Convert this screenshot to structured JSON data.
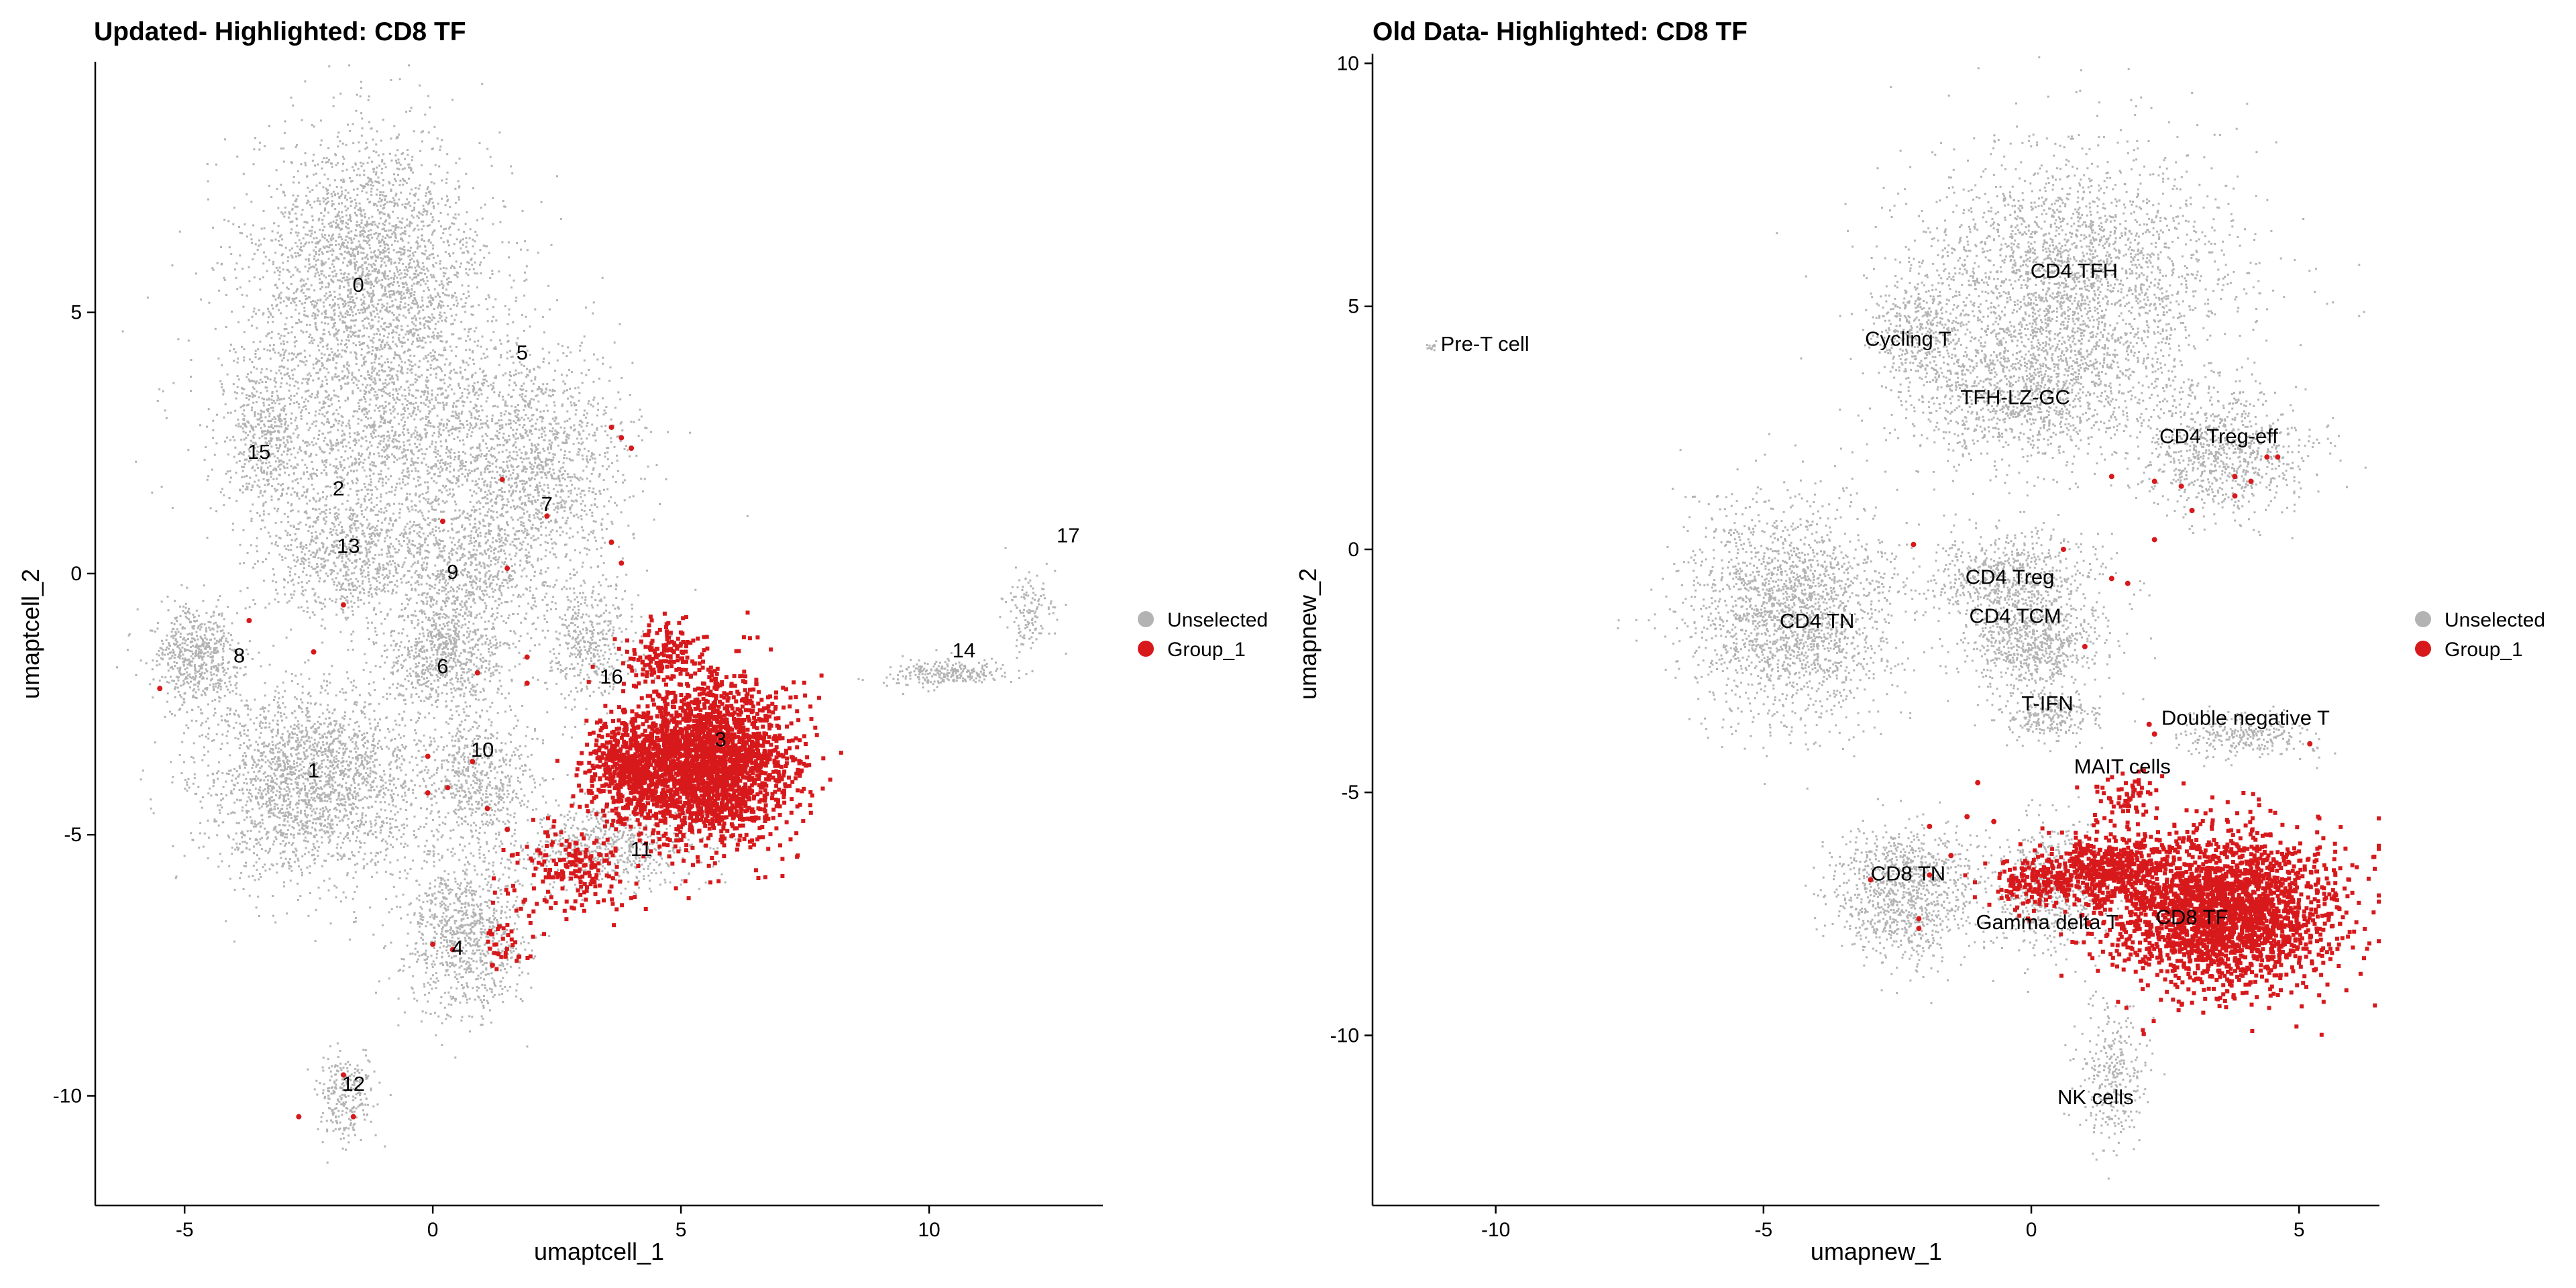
{
  "colors": {
    "unselected": "#b3b3b3",
    "group_1": "#d7191c",
    "axis": "#000000",
    "text": "#000000"
  },
  "chart_data": [
    {
      "type": "scatter",
      "title": "Updated- Highlighted: CD8 TF",
      "xlabel": "umaptcell_1",
      "ylabel": "umaptcell_2",
      "xlim": [
        -6.8,
        13.5
      ],
      "ylim": [
        -12.1,
        9.8
      ],
      "xticks": [
        {
          "value": -5,
          "label": "-5"
        },
        {
          "value": 0,
          "label": "0"
        },
        {
          "value": 5,
          "label": "5"
        },
        {
          "value": 10,
          "label": "10"
        }
      ],
      "yticks": [
        {
          "value": -10,
          "label": "-10"
        },
        {
          "value": -5,
          "label": "-5"
        },
        {
          "value": 0,
          "label": "0"
        },
        {
          "value": 5,
          "label": "5"
        }
      ],
      "legend_position": "right",
      "legend": [
        {
          "label": "Unselected",
          "color": "#b3b3b3"
        },
        {
          "label": "Group_1",
          "color": "#d7191c"
        }
      ],
      "cluster_labels": [
        {
          "text": "0",
          "x": -1.5,
          "y": 5.5
        },
        {
          "text": "5",
          "x": 1.8,
          "y": 4.2
        },
        {
          "text": "15",
          "x": -3.5,
          "y": 2.3
        },
        {
          "text": "2",
          "x": -1.9,
          "y": 1.6
        },
        {
          "text": "7",
          "x": 2.3,
          "y": 1.3
        },
        {
          "text": "13",
          "x": -1.7,
          "y": 0.5
        },
        {
          "text": "9",
          "x": 0.4,
          "y": 0.0
        },
        {
          "text": "8",
          "x": -3.9,
          "y": -1.6
        },
        {
          "text": "6",
          "x": 0.2,
          "y": -1.8
        },
        {
          "text": "16",
          "x": 3.6,
          "y": -2.0
        },
        {
          "text": "3",
          "x": 5.8,
          "y": -3.2
        },
        {
          "text": "10",
          "x": 1.0,
          "y": -3.4
        },
        {
          "text": "1",
          "x": -2.4,
          "y": -3.8
        },
        {
          "text": "11",
          "x": 4.2,
          "y": -5.3
        },
        {
          "text": "4",
          "x": 0.5,
          "y": -7.2
        },
        {
          "text": "12",
          "x": -1.6,
          "y": -9.8
        },
        {
          "text": "14",
          "x": 10.7,
          "y": -1.5
        },
        {
          "text": "17",
          "x": 12.8,
          "y": 0.7
        }
      ],
      "unselected_regions": [
        {
          "cx": -1.3,
          "cy": 5.8,
          "rx": 2.4,
          "ry": 2.6,
          "n": 2600
        },
        {
          "cx": -0.4,
          "cy": 2.6,
          "rx": 3.6,
          "ry": 2.2,
          "n": 2200
        },
        {
          "cx": 2.2,
          "cy": 1.8,
          "rx": 1.6,
          "ry": 2.2,
          "n": 900
        },
        {
          "cx": -3.4,
          "cy": 2.6,
          "rx": 0.8,
          "ry": 1.5,
          "n": 400
        },
        {
          "cx": -1.8,
          "cy": 0.3,
          "rx": 1.6,
          "ry": 1.1,
          "n": 700
        },
        {
          "cx": 0.6,
          "cy": 0.0,
          "rx": 1.5,
          "ry": 1.2,
          "n": 700
        },
        {
          "cx": -4.8,
          "cy": -1.6,
          "rx": 0.9,
          "ry": 1.0,
          "n": 600
        },
        {
          "cx": 0.2,
          "cy": -1.6,
          "rx": 1.3,
          "ry": 1.0,
          "n": 700
        },
        {
          "cx": 3.1,
          "cy": -1.3,
          "rx": 0.9,
          "ry": 1.2,
          "n": 400
        },
        {
          "cx": -2.4,
          "cy": -4.0,
          "rx": 2.3,
          "ry": 1.9,
          "n": 2300
        },
        {
          "cx": 0.9,
          "cy": -3.9,
          "rx": 1.2,
          "ry": 1.2,
          "n": 600
        },
        {
          "cx": 3.5,
          "cy": -5.2,
          "rx": 1.9,
          "ry": 0.8,
          "n": 600
        },
        {
          "cx": 0.6,
          "cy": -6.9,
          "rx": 1.2,
          "ry": 1.5,
          "n": 900
        },
        {
          "cx": -1.8,
          "cy": -10.0,
          "rx": 0.6,
          "ry": 0.9,
          "n": 250
        },
        {
          "cx": 10.3,
          "cy": -1.9,
          "rx": 1.2,
          "ry": 0.25,
          "n": 250
        },
        {
          "cx": 12.0,
          "cy": -0.7,
          "rx": 0.5,
          "ry": 0.8,
          "n": 130
        }
      ],
      "group_1_regions": [
        {
          "cx": 5.5,
          "cy": -3.6,
          "rx": 1.6,
          "ry": 1.5,
          "n": 2400
        },
        {
          "cx": 3.9,
          "cy": -3.7,
          "rx": 0.9,
          "ry": 1.0,
          "n": 500
        },
        {
          "cx": 4.6,
          "cy": -1.5,
          "rx": 0.8,
          "ry": 0.6,
          "n": 150
        },
        {
          "cx": 2.8,
          "cy": -5.6,
          "rx": 1.2,
          "ry": 0.8,
          "n": 180
        },
        {
          "cx": 1.6,
          "cy": -6.8,
          "rx": 0.6,
          "ry": 1.2,
          "n": 45
        }
      ],
      "group_1_sparse": [
        [
          -5.5,
          -2.2
        ],
        [
          -3.7,
          -0.9
        ],
        [
          -2.4,
          -1.5
        ],
        [
          -1.8,
          -0.6
        ],
        [
          0.2,
          1.0
        ],
        [
          1.4,
          1.8
        ],
        [
          1.5,
          0.1
        ],
        [
          2.3,
          1.1
        ],
        [
          3.6,
          0.6
        ],
        [
          3.6,
          2.8
        ],
        [
          3.8,
          2.6
        ],
        [
          4.0,
          2.4
        ],
        [
          3.8,
          0.2
        ],
        [
          0.9,
          -1.9
        ],
        [
          1.9,
          -1.6
        ],
        [
          1.9,
          -2.1
        ],
        [
          -0.1,
          -4.2
        ],
        [
          0.3,
          -4.1
        ],
        [
          0.8,
          -3.6
        ],
        [
          1.5,
          -4.9
        ],
        [
          0.0,
          -7.1
        ],
        [
          0.4,
          -7.2
        ],
        [
          1.2,
          -7.5
        ],
        [
          -1.8,
          -9.6
        ],
        [
          -1.6,
          -10.4
        ],
        [
          -2.7,
          -10.4
        ],
        [
          -0.1,
          -3.5
        ],
        [
          1.1,
          -4.5
        ]
      ]
    },
    {
      "type": "scatter",
      "title": "Old Data- Highlighted: CD8 TF",
      "xlabel": "umapnew_1",
      "ylabel": "umapnew_2",
      "xlim": [
        -12.3,
        6.5
      ],
      "ylim": [
        -13.5,
        10.2
      ],
      "xticks": [
        {
          "value": -10,
          "label": "-10"
        },
        {
          "value": -5,
          "label": "-5"
        },
        {
          "value": 0,
          "label": "0"
        },
        {
          "value": 5,
          "label": "5"
        }
      ],
      "yticks": [
        {
          "value": -10,
          "label": "-10"
        },
        {
          "value": -5,
          "label": "-5"
        },
        {
          "value": 0,
          "label": "0"
        },
        {
          "value": 5,
          "label": "5"
        },
        {
          "value": 10,
          "label": "10"
        }
      ],
      "legend_position": "right",
      "legend": [
        {
          "label": "Unselected",
          "color": "#b3b3b3"
        },
        {
          "label": "Group_1",
          "color": "#d7191c"
        }
      ],
      "cluster_labels": [
        {
          "text": "CD4 TFH",
          "x": 0.8,
          "y": 5.7
        },
        {
          "text": "Pre-T cell",
          "x": -10.2,
          "y": 4.2
        },
        {
          "text": "Cycling T",
          "x": -2.3,
          "y": 4.3
        },
        {
          "text": "TFH-LZ-GC",
          "x": -0.3,
          "y": 3.1
        },
        {
          "text": "CD4 Treg-eff",
          "x": 3.5,
          "y": 2.3
        },
        {
          "text": "CD4 Treg",
          "x": -0.4,
          "y": -0.6
        },
        {
          "text": "CD4 TN",
          "x": -4.0,
          "y": -1.5
        },
        {
          "text": "CD4 TCM",
          "x": -0.3,
          "y": -1.4
        },
        {
          "text": "T-IFN",
          "x": 0.3,
          "y": -3.2
        },
        {
          "text": "Double negative T",
          "x": 4.0,
          "y": -3.5
        },
        {
          "text": "MAIT cells",
          "x": 1.7,
          "y": -4.5
        },
        {
          "text": "CD8 TN",
          "x": -2.3,
          "y": -6.7
        },
        {
          "text": "Gamma delta T",
          "x": 0.3,
          "y": -7.7
        },
        {
          "text": "CD8 TF",
          "x": 3.0,
          "y": -7.6
        },
        {
          "text": "NK cells",
          "x": 1.2,
          "y": -11.3
        }
      ],
      "unselected_regions": [
        {
          "cx": 0.8,
          "cy": 5.5,
          "rx": 2.9,
          "ry": 2.6,
          "n": 2600
        },
        {
          "cx": -0.2,
          "cy": 3.2,
          "rx": 2.2,
          "ry": 1.4,
          "n": 1100
        },
        {
          "cx": -2.1,
          "cy": 4.5,
          "rx": 1.0,
          "ry": 1.0,
          "n": 350
        },
        {
          "cx": 3.6,
          "cy": 2.0,
          "rx": 1.5,
          "ry": 1.3,
          "n": 800
        },
        {
          "cx": -4.5,
          "cy": -1.3,
          "rx": 1.9,
          "ry": 2.2,
          "n": 2000
        },
        {
          "cx": -0.4,
          "cy": -0.6,
          "rx": 1.6,
          "ry": 1.0,
          "n": 700
        },
        {
          "cx": 0.0,
          "cy": -1.9,
          "rx": 1.3,
          "ry": 0.9,
          "n": 700
        },
        {
          "cx": 0.3,
          "cy": -3.4,
          "rx": 0.9,
          "ry": 0.5,
          "n": 250
        },
        {
          "cx": 4.0,
          "cy": -3.8,
          "rx": 1.3,
          "ry": 0.5,
          "n": 280
        },
        {
          "cx": -2.4,
          "cy": -7.0,
          "rx": 1.3,
          "ry": 1.4,
          "n": 1000
        },
        {
          "cx": 0.3,
          "cy": -7.0,
          "rx": 1.3,
          "ry": 1.3,
          "n": 600
        },
        {
          "cx": 1.5,
          "cy": -10.8,
          "rx": 0.6,
          "ry": 1.5,
          "n": 300
        },
        {
          "cx": -11.2,
          "cy": 4.2,
          "rx": 0.12,
          "ry": 0.08,
          "n": 15
        }
      ],
      "group_1_regions": [
        {
          "cx": 3.5,
          "cy": -7.4,
          "rx": 2.1,
          "ry": 1.5,
          "n": 2400
        },
        {
          "cx": 1.4,
          "cy": -6.5,
          "rx": 1.1,
          "ry": 0.7,
          "n": 450
        },
        {
          "cx": 0.0,
          "cy": -6.8,
          "rx": 0.9,
          "ry": 0.5,
          "n": 170
        },
        {
          "cx": 1.8,
          "cy": -5.0,
          "rx": 0.6,
          "ry": 0.5,
          "n": 60
        }
      ],
      "group_1_sparse": [
        [
          -2.2,
          0.1
        ],
        [
          0.6,
          0.0
        ],
        [
          1.5,
          -0.6
        ],
        [
          1.8,
          -0.7
        ],
        [
          2.3,
          0.2
        ],
        [
          1.5,
          1.5
        ],
        [
          2.3,
          1.4
        ],
        [
          2.8,
          1.3
        ],
        [
          3.0,
          0.8
        ],
        [
          3.8,
          1.5
        ],
        [
          4.1,
          1.4
        ],
        [
          3.8,
          1.1
        ],
        [
          4.4,
          1.9
        ],
        [
          4.6,
          1.9
        ],
        [
          1.0,
          -2.0
        ],
        [
          2.2,
          -3.6
        ],
        [
          2.3,
          -3.8
        ],
        [
          5.2,
          -4.0
        ],
        [
          -1.9,
          -5.7
        ],
        [
          -1.2,
          -5.5
        ],
        [
          -1.0,
          -4.8
        ],
        [
          -0.7,
          -5.6
        ],
        [
          -2.1,
          -7.6
        ],
        [
          -2.1,
          -7.8
        ],
        [
          -3.0,
          -6.8
        ],
        [
          -1.5,
          -6.3
        ],
        [
          -1.9,
          -6.7
        ]
      ]
    }
  ]
}
